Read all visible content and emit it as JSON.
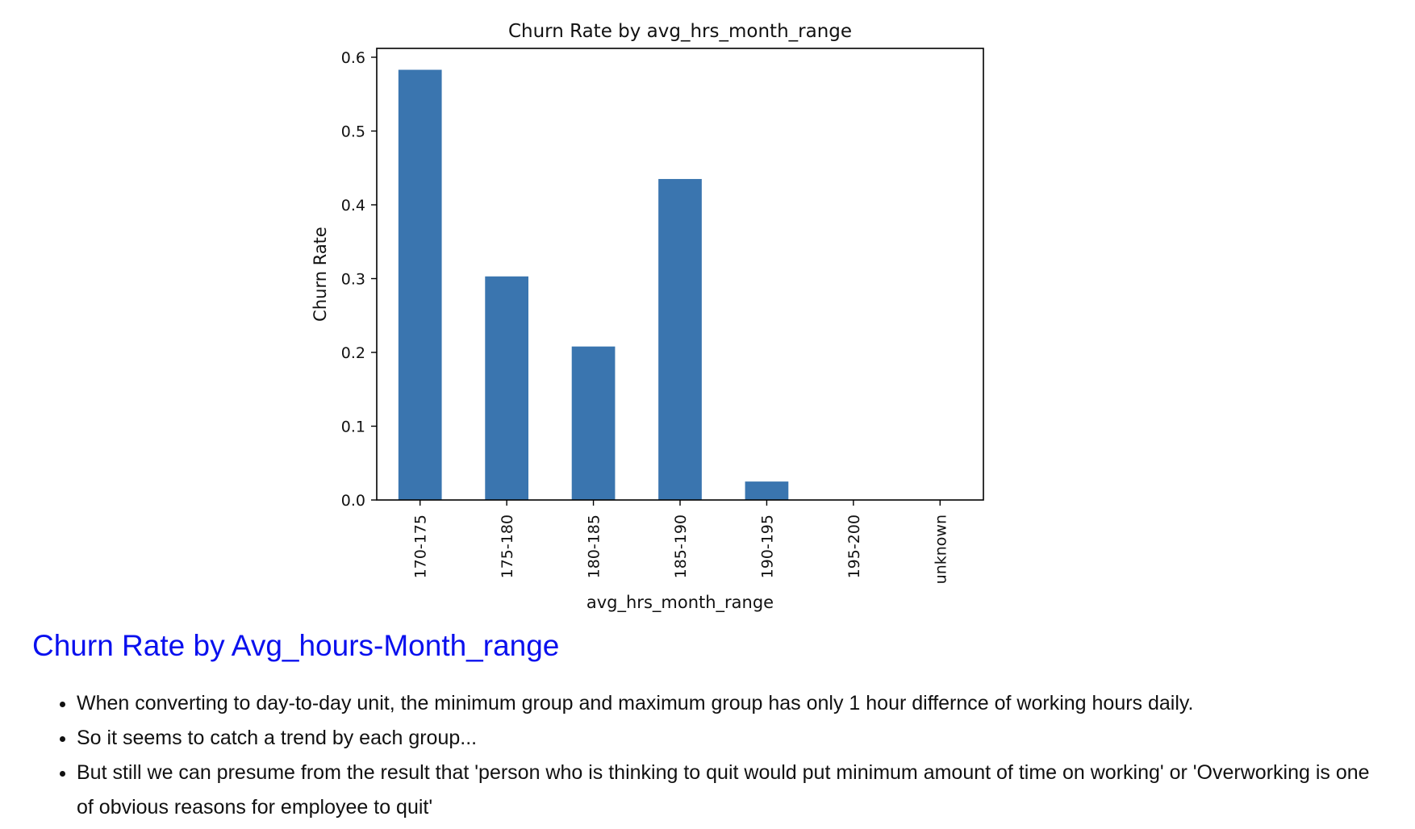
{
  "chart_data": {
    "type": "bar",
    "title": "Churn Rate by avg_hrs_month_range",
    "xlabel": "avg_hrs_month_range",
    "ylabel": "Churn Rate",
    "categories": [
      "170-175",
      "175-180",
      "180-185",
      "185-190",
      "190-195",
      "195-200",
      "unknown"
    ],
    "values": [
      0.583,
      0.303,
      0.208,
      0.435,
      0.025,
      0.0,
      0.0
    ],
    "ylim": [
      0,
      0.612
    ],
    "yticks": [
      0.0,
      0.1,
      0.2,
      0.3,
      0.4,
      0.5,
      0.6
    ],
    "ytick_labels": [
      "0.0",
      "0.1",
      "0.2",
      "0.3",
      "0.4",
      "0.5",
      "0.6"
    ],
    "grid": false,
    "legend": "none",
    "bar_color": "#3a75af"
  },
  "notes": {
    "heading": "Churn Rate by Avg_hours-Month_range",
    "bullets": [
      "When converting to day-to-day unit, the minimum group and maximum group has only 1 hour differnce of working hours daily.",
      "So it seems to catch a trend by each group...",
      "But still we can presume from the result that 'person who is thinking to quit would put minimum amount of time on working' or 'Overworking is one of obvious reasons for employee to quit'"
    ]
  }
}
